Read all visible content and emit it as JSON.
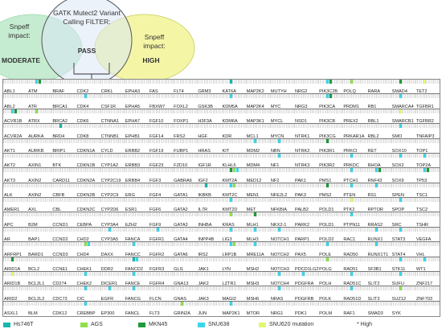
{
  "venn": {
    "center_title": [
      "GATK Mutect2 Variant",
      "Calling FILTER:"
    ],
    "center_label": "PASS",
    "left_title": [
      "Snpeff",
      "impact:"
    ],
    "left_label": "MODERATE",
    "right_title": [
      "Snpeff",
      "impact:"
    ],
    "right_label": "HIGH",
    "colors": {
      "left": "#c5ecd0",
      "center": "#dbe8f6",
      "right": "#f4f6a6",
      "outline": "#555555"
    }
  },
  "legend": [
    {
      "label": "Hs746T",
      "color": "#14b8ad"
    },
    {
      "label": "AGS",
      "color": "#8ee04a"
    },
    {
      "label": "MKN45",
      "color": "#1e9a3a"
    },
    {
      "label": "SNU638",
      "color": "#39d6ea"
    },
    {
      "label": "SNU620 mutation",
      "color": "#e3f76c"
    },
    {
      "label": "* High",
      "color": ""
    }
  ],
  "gene_rows": [
    [
      "ABL1",
      "ATM",
      "BRAF",
      "CDK2",
      "CRKL",
      "EPHA3",
      "FAS",
      "FLT4",
      "GRM3",
      "KAT6A",
      "MAP2K2",
      "MUTYH",
      "NRG2",
      "PIK3C2B",
      "POLQ",
      "RARA",
      "SMAD4",
      "TET2"
    ],
    [
      "ABL2",
      "ATR",
      "BRCA1",
      "CDK4",
      "CSF1R",
      "EPHA5",
      "FBXW7",
      "FOXL2",
      "GSK3B",
      "KDM5A",
      "MAP2K4",
      "MYC",
      "NRG3",
      "PIK3CA",
      "PRDM1",
      "RB1",
      "SMARCA4",
      "TGFBR1"
    ],
    [
      "ACVR1B",
      "ATRX",
      "BRCA2",
      "CDK6",
      "CTNNA1",
      "EPHA7",
      "FGF10",
      "FOXP1",
      "H3F3A",
      "KDM6A",
      "MAP3K1",
      "MYCL",
      "NSD1",
      "PIK3CB",
      "PREX2",
      "RBL1",
      "SMARCB1",
      "TGFBR2"
    ],
    [
      "ACVR2A",
      "AURKA",
      "BRD4",
      "CDK8",
      "CTNNB1",
      "EPHB1",
      "FGF14",
      "FRS2",
      "HGF",
      "KDR",
      "MCL1",
      "MYCN",
      "NTRK1",
      "PIK3CG",
      "PRKAR1A",
      "RBL2",
      "SMO",
      "TNFAIP3"
    ],
    [
      "AKT1",
      "AURKB",
      "BRIP1",
      "CDKN1A",
      "CYLD",
      "ERBB2",
      "FGF19",
      "FUBP1",
      "HRAS",
      "KIT",
      "MDM2",
      "NBN",
      "NTRK2",
      "PIK3R1",
      "PRKCI",
      "RET",
      "SOX10",
      "TOP1"
    ],
    [
      "AKT2",
      "AXIN1",
      "BTK",
      "CDKN1B",
      "CYP1A2",
      "ERBB3",
      "FGF23",
      "FZD10",
      "IGF1R",
      "KLHL6",
      "MDM4",
      "NF1",
      "NTRK3",
      "PIK3R2",
      "PRKDC",
      "RHOA",
      "SOX2",
      "TOP2A"
    ],
    [
      "AKT3",
      "AXIN2",
      "CARD11",
      "CDKN2A",
      "CYP2C19",
      "ERBB4",
      "FGF3",
      "GABRA6",
      "IGF2",
      "KMT2A",
      "MED12",
      "NF2",
      "PAK1",
      "PMS1",
      "PTCH1",
      "RNF43",
      "SOX9",
      "TP53"
    ],
    [
      "ALK",
      "AXIN2",
      "CBFB",
      "CDKN2B",
      "CYP2C9",
      "ERG",
      "FGF4",
      "GATA1",
      "IKBKB",
      "KMT2C",
      "MEN1",
      "NFE2L2",
      "PAK3",
      "PMS2",
      "PTEN",
      "RS1",
      "SPEN",
      "TSC1"
    ],
    [
      "AMER1",
      "AXL",
      "CBL",
      "CDKN2C",
      "CYP2D6",
      "ESR1",
      "FGF6",
      "GATA2",
      "IL7R",
      "KMT2D",
      "MET",
      "NFKBIA",
      "PALB2",
      "POLD1",
      "PTK2",
      "RPTOR",
      "SPOP",
      "TSC2"
    ],
    [
      "APC",
      "B2M",
      "CCND1",
      "CEBPA",
      "CYP3A4",
      "EZH2",
      "FGF9",
      "GATA3",
      "INHBA",
      "KRAS",
      "MLH1",
      "NKX2-1",
      "PARK2",
      "POLD1",
      "PTPN11",
      "RRAS2",
      "SRC",
      "TSHR"
    ],
    [
      "AR",
      "BAP1",
      "CCND2",
      "CHD2",
      "CYP3A5",
      "FANCA",
      "FGFR1",
      "GATA4",
      "INPP4B",
      "LIG3",
      "MLH3",
      "NOTCH1",
      "PARP1",
      "POLD2",
      "RAC1",
      "RUNX1",
      "STAT3",
      "VEGFA"
    ],
    [
      "ARFRP1",
      "BARD1",
      "CCND3",
      "CHD4",
      "DAXX",
      "FANCC",
      "FGFR2",
      "GATA6",
      "IRS2",
      "LRP1B",
      "MRE11A",
      "NOTCH2",
      "PAX5",
      "POLE",
      "RAD50",
      "RUNX1T1",
      "STAT4",
      "VHL"
    ],
    [
      "ARID1A",
      "BCL2",
      "CCNE1",
      "CHEK1",
      "DDR2",
      "FANCD2",
      "FGFR3",
      "GLI1",
      "JAK1",
      "LYN",
      "MSH2",
      "NOTCH3",
      "PDCD1LG2",
      "POLG",
      "RAD51",
      "SF3B1",
      "STK11",
      "WT1"
    ],
    [
      "ARID1B",
      "BCL2L1",
      "CD274",
      "CHEK2",
      "DICER1",
      "FANCE",
      "FGFR4",
      "GNA13",
      "JAK2",
      "LZTR1",
      "MSH3",
      "NOTCH4",
      "PDGFRA",
      "POLH",
      "RAD51C",
      "SLIT2",
      "SUFU",
      "ZNF217"
    ],
    [
      "ARID2",
      "BCL2L2",
      "CDC73",
      "CIC",
      "EGFR",
      "FANCG",
      "FLCN",
      "GNAS",
      "JAK3",
      "MAGI2",
      "MSH6",
      "NRAS",
      "PDGFRB",
      "POLK",
      "RAD51D",
      "SLIT3",
      "SUZ12",
      "ZNF703"
    ],
    [
      "ASXL1",
      "BLM",
      "CDK12",
      "CREBBP",
      "EP300",
      "FANCL",
      "FLT3",
      "GRIN2A",
      "JUN",
      "MAP2K1",
      "MTOR",
      "NRG1",
      "PDK1",
      "POLM",
      "RAF1",
      "SMAD3",
      "SYK",
      ""
    ]
  ],
  "markers": [
    [
      0,
      1,
      "#39d6ea"
    ],
    [
      0,
      1,
      "#1e9a3a"
    ],
    [
      0,
      9,
      "#14b8ad"
    ],
    [
      0,
      13,
      "#39d6ea"
    ],
    [
      0,
      13,
      "#1e9a3a"
    ],
    [
      0,
      14,
      "#8ee04a"
    ],
    [
      0,
      16,
      "#1e9a3a"
    ],
    [
      0,
      17,
      "#e3f76c"
    ],
    [
      1,
      3,
      "#39d6ea"
    ],
    [
      1,
      9,
      "#39d6ea"
    ],
    [
      1,
      13,
      "#39d6ea"
    ],
    [
      1,
      13,
      "#1e9a3a"
    ],
    [
      1,
      16,
      "#39d6ea"
    ],
    [
      2,
      0,
      "#39d6ea"
    ],
    [
      2,
      0,
      "#1e9a3a"
    ],
    [
      2,
      1,
      "#8ee04a"
    ],
    [
      2,
      16,
      "#e3f76c"
    ],
    [
      3,
      2,
      "#14b8ad"
    ],
    [
      3,
      16,
      "#39d6ea"
    ],
    [
      4,
      10,
      "#39d6ea"
    ],
    [
      4,
      11,
      "#39d6ea"
    ],
    [
      4,
      13,
      "#1e9a3a"
    ],
    [
      5,
      11,
      "#39d6ea"
    ],
    [
      5,
      14,
      "#39d6ea"
    ],
    [
      5,
      16,
      "#39d6ea"
    ],
    [
      5,
      17,
      "#39d6ea"
    ],
    [
      6,
      9,
      "#1e9a3a"
    ],
    [
      6,
      9,
      "#8ee04a"
    ],
    [
      6,
      9,
      "#39d6ea"
    ],
    [
      6,
      14,
      "#39d6ea"
    ],
    [
      6,
      15,
      "#39d6ea"
    ],
    [
      6,
      15,
      "#1e9a3a"
    ],
    [
      6,
      17,
      "#39d6ea"
    ],
    [
      6,
      17,
      "#1e9a3a"
    ],
    [
      7,
      8,
      "#14b8ad"
    ],
    [
      7,
      9,
      "#39d6ea"
    ],
    [
      7,
      9,
      "#8ee04a"
    ],
    [
      7,
      13,
      "#1e9a3a"
    ],
    [
      7,
      14,
      "#39d6ea"
    ],
    [
      7,
      15,
      "#39d6ea"
    ],
    [
      8,
      9,
      "#39d6ea"
    ],
    [
      8,
      14,
      "#e3f76c"
    ],
    [
      8,
      16,
      "#39d6ea"
    ],
    [
      9,
      9,
      "#8ee04a"
    ],
    [
      9,
      10,
      "#1e9a3a"
    ],
    [
      9,
      14,
      "#39d6ea"
    ],
    [
      10,
      4,
      "#39d6ea"
    ],
    [
      10,
      6,
      "#39d6ea"
    ],
    [
      10,
      9,
      "#39d6ea"
    ],
    [
      10,
      10,
      "#39d6ea"
    ],
    [
      10,
      11,
      "#39d6ea"
    ],
    [
      10,
      15,
      "#39d6ea"
    ],
    [
      10,
      16,
      "#39d6ea"
    ],
    [
      11,
      3,
      "#8ee04a"
    ],
    [
      11,
      3,
      "#39d6ea"
    ],
    [
      11,
      5,
      "#39d6ea"
    ],
    [
      11,
      9,
      "#39d6ea"
    ],
    [
      11,
      9,
      "#8ee04a"
    ],
    [
      11,
      10,
      "#39d6ea"
    ],
    [
      11,
      13,
      "#39d6ea"
    ],
    [
      11,
      15,
      "#39d6ea"
    ],
    [
      12,
      0,
      "#1e9a3a"
    ],
    [
      12,
      5,
      "#14b8ad"
    ],
    [
      12,
      5,
      "#39d6ea"
    ],
    [
      12,
      13,
      "#8ee04a"
    ],
    [
      12,
      16,
      "#39d6ea"
    ],
    [
      12,
      17,
      "#39d6ea"
    ],
    [
      13,
      0,
      "#e3f76c"
    ],
    [
      13,
      3,
      "#39d6ea"
    ],
    [
      13,
      5,
      "#39d6ea"
    ],
    [
      13,
      11,
      "#39d6ea"
    ],
    [
      13,
      12,
      "#39d6ea"
    ],
    [
      13,
      14,
      "#39d6ea"
    ],
    [
      13,
      16,
      "#39d6ea"
    ],
    [
      14,
      3,
      "#39d6ea"
    ],
    [
      14,
      4,
      "#39d6ea"
    ],
    [
      14,
      5,
      "#39d6ea"
    ],
    [
      14,
      11,
      "#39d6ea"
    ],
    [
      14,
      14,
      "#39d6ea"
    ],
    [
      14,
      16,
      "#8ee04a"
    ],
    [
      15,
      3,
      "#39d6ea"
    ],
    [
      15,
      7,
      "#8ee04a"
    ],
    [
      15,
      9,
      "#39d6ea"
    ]
  ]
}
